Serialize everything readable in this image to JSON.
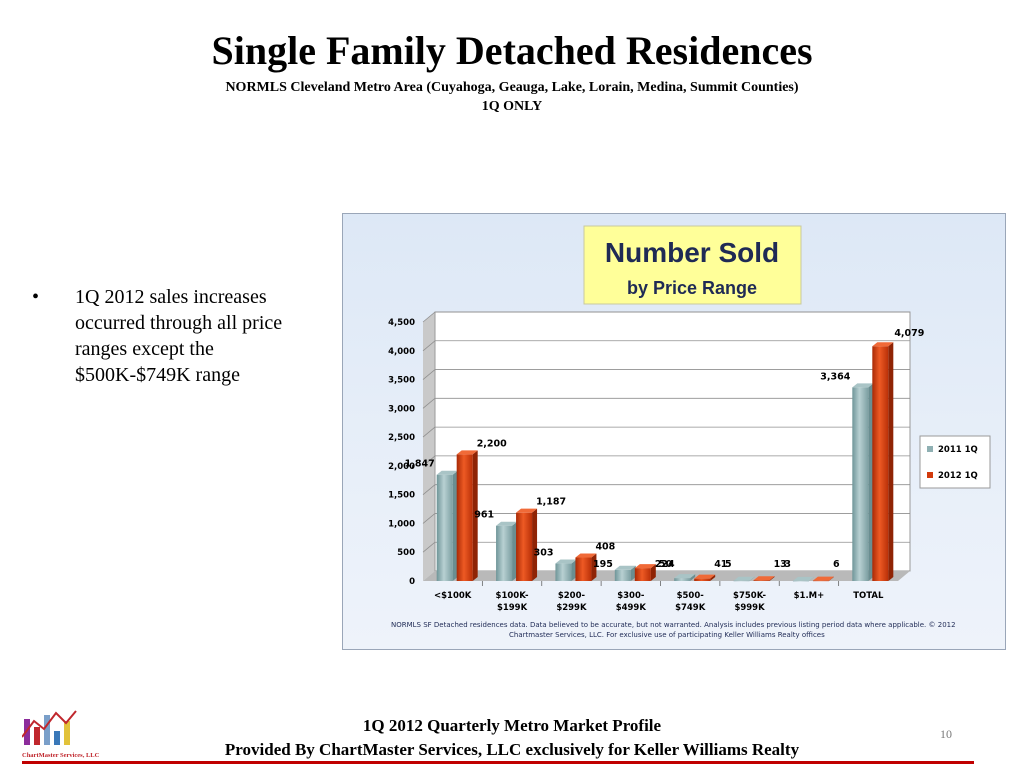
{
  "header": {
    "title": "Single Family Detached Residences",
    "subtitle": "NORMLS Cleveland Metro Area (Cuyahoga, Geauga, Lake, Lorain, Medina, Summit Counties)",
    "subtitle2": "1Q ONLY"
  },
  "bullet": {
    "marker": "•",
    "text": "1Q 2012 sales increases occurred through all price ranges except the $500K-$749K range"
  },
  "chart_data": {
    "type": "bar",
    "title": "Number Sold",
    "subtitle": "by Price Range",
    "categories": [
      [
        "<$100K"
      ],
      [
        "$100K-",
        "$199K"
      ],
      [
        "$200-",
        "$299K"
      ],
      [
        "$300-",
        "$499K"
      ],
      [
        "$500-",
        "$749K"
      ],
      [
        "$750K-",
        "$999K"
      ],
      [
        "$1.M+"
      ],
      [
        "TOTAL"
      ]
    ],
    "series": [
      {
        "name": "2011 1Q",
        "values": [
          1847,
          961,
          303,
          195,
          50,
          5,
          3,
          3364
        ],
        "labels": [
          "1,847",
          "961",
          "303",
          "195",
          "50",
          "5",
          "3",
          "3,364"
        ],
        "color": "#8fb0b3"
      },
      {
        "name": "2012 1Q",
        "values": [
          2200,
          1187,
          408,
          224,
          41,
          13,
          6,
          4079
        ],
        "labels": [
          "2,200",
          "1,187",
          "408",
          "224",
          "41",
          "13",
          "6",
          "4,079"
        ],
        "color": "#d23a0c"
      }
    ],
    "ylim": [
      0,
      4500
    ],
    "yticks": [
      0,
      500,
      1000,
      1500,
      2000,
      2500,
      3000,
      3500,
      4000,
      4500
    ],
    "ytick_labels": [
      "0",
      "500",
      "1,000",
      "1,500",
      "2,000",
      "2,500",
      "3,000",
      "3,500",
      "4,000",
      "4,500"
    ],
    "grid": true,
    "legend_position": "right",
    "note_line1": "NORMLS SF Detached residences data.  Data believed to be accurate, but not warranted.   Analysis includes previous listing period data where applicable.  © 2012",
    "note_line2": "Chartmaster Services, LLC.  For exclusive use of participating Keller Williams Realty offices",
    "title_box_color": "#ffff99"
  },
  "footer": {
    "line1": "1Q 2012 Quarterly Metro Market Profile",
    "line2": "Provided By ChartMaster Services, LLC exclusively for Keller Williams Realty",
    "page_number": "10",
    "logo_text": "ChartMaster Services, LLC"
  }
}
